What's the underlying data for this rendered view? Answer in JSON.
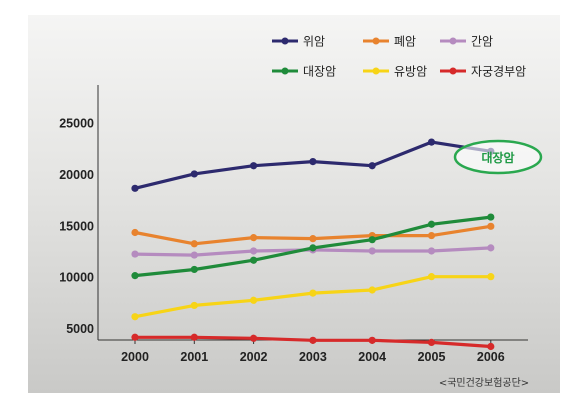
{
  "chart_data": {
    "type": "line",
    "x": [
      "2000",
      "2001",
      "2002",
      "2003",
      "2004",
      "2005",
      "2006"
    ],
    "yticks": [
      5000,
      10000,
      15000,
      20000,
      25000
    ],
    "ylim": [
      0,
      25000
    ],
    "series": [
      {
        "name": "위암",
        "color": "#2d2a6e",
        "values": [
          18700,
          20100,
          20900,
          21300,
          20900,
          23200,
          22300
        ]
      },
      {
        "name": "폐암",
        "color": "#e8832e",
        "values": [
          14400,
          13300,
          13900,
          13800,
          14100,
          14100,
          15000
        ]
      },
      {
        "name": "간암",
        "color": "#b58bbf",
        "values": [
          12300,
          12200,
          12600,
          12700,
          12600,
          12600,
          12900
        ]
      },
      {
        "name": "대장암",
        "color": "#1f8b3a",
        "values": [
          10200,
          10800,
          11700,
          12900,
          13700,
          15200,
          15900
        ]
      },
      {
        "name": "유방암",
        "color": "#f7d417",
        "values": [
          6200,
          7300,
          7800,
          8500,
          8800,
          10100,
          10100
        ]
      },
      {
        "name": "자궁경부암",
        "color": "#d62a2a",
        "values": [
          4200,
          4200,
          4100,
          3900,
          3900,
          3700,
          3300
        ]
      }
    ],
    "annotations": [
      {
        "text": "대장암",
        "series": "대장암"
      }
    ],
    "source": "<국민건강보험공단>",
    "grid": false,
    "legend_position": "top-right"
  }
}
